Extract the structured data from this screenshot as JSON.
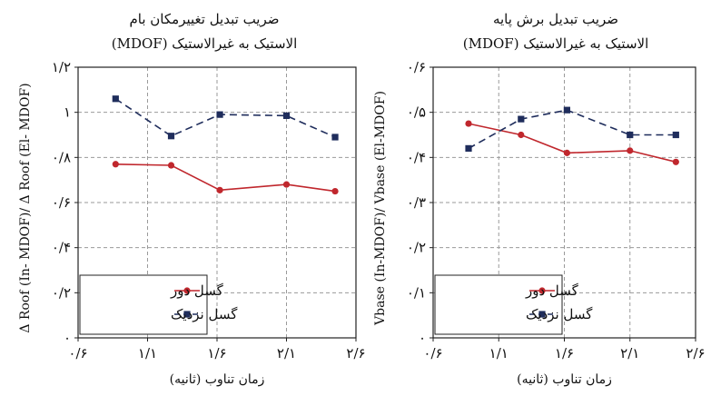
{
  "figure_title": "",
  "chart_data": [
    {
      "type": "line",
      "title": "ضریب تبدیل تغییرمکان بام",
      "subtitle": "الاستیک به غیرالاستیک (MDOF)",
      "xlabel": "زمان تناوب (ثانیه)",
      "ylabel": "Δ Roof (In- MDOF)/ Δ Roof (El- MDOF)",
      "x_ticks": [
        0.6,
        1.1,
        1.6,
        2.1,
        2.6
      ],
      "x_tick_labels": [
        "۰/۶",
        "۱/۱",
        "۱/۶",
        "۲/۱",
        "۲/۶"
      ],
      "xlim": [
        0.6,
        2.6
      ],
      "y_ticks": [
        0,
        0.2,
        0.4,
        0.6,
        0.8,
        1.0,
        1.2
      ],
      "y_tick_labels": [
        "۰",
        "۰/۲",
        "۰/۴",
        "۰/۶",
        "۰/۸",
        "۱",
        "۱/۲"
      ],
      "ylim": [
        0,
        1.2
      ],
      "grid": true,
      "legend_position": "bottom-left",
      "x": [
        0.87,
        1.27,
        1.62,
        2.1,
        2.45
      ],
      "series": [
        {
          "name": "گسل دور",
          "color": "#c0272d",
          "line_style": "solid",
          "marker": "circle",
          "values": [
            0.77,
            0.765,
            0.655,
            0.68,
            0.65
          ]
        },
        {
          "name": "گسل نزدیک",
          "color": "#1f2d5c",
          "line_style": "dashed",
          "marker": "square",
          "values": [
            1.06,
            0.895,
            0.99,
            0.985,
            0.89
          ]
        }
      ]
    },
    {
      "type": "line",
      "title": "ضریب تبدیل برش پایه",
      "subtitle": "الاستیک به غیرالاستیک (MDOF)",
      "xlabel": "زمان تناوب (ثانیه)",
      "ylabel": "Vbase (In-MDOF)/ Vbase (El-MDOF)",
      "x_ticks": [
        0.6,
        1.1,
        1.6,
        2.1,
        2.6
      ],
      "x_tick_labels": [
        "۰/۶",
        "۱/۱",
        "۱/۶",
        "۲/۱",
        "۲/۶"
      ],
      "xlim": [
        0.6,
        2.6
      ],
      "y_ticks": [
        0,
        0.1,
        0.2,
        0.3,
        0.4,
        0.5,
        0.6
      ],
      "y_tick_labels": [
        "۰",
        "۰/۱",
        "۰/۲",
        "۰/۳",
        "۰/۴",
        "۰/۵",
        "۰/۶"
      ],
      "ylim": [
        0,
        0.6
      ],
      "grid": true,
      "legend_position": "bottom-left",
      "x": [
        0.87,
        1.27,
        1.62,
        2.1,
        2.45
      ],
      "series": [
        {
          "name": "گسل دور",
          "color": "#c0272d",
          "line_style": "solid",
          "marker": "circle",
          "values": [
            0.475,
            0.45,
            0.41,
            0.415,
            0.39
          ]
        },
        {
          "name": "گسل نزدیک",
          "color": "#1f2d5c",
          "line_style": "dashed",
          "marker": "square",
          "values": [
            0.42,
            0.485,
            0.505,
            0.45,
            0.45
          ]
        }
      ]
    }
  ]
}
